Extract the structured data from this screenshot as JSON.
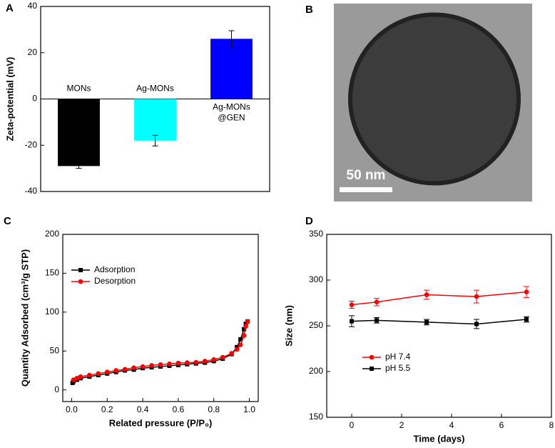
{
  "chart_data": [
    {
      "type": "bar",
      "panel": "A",
      "ylabel": "Zeta-potential (mV)",
      "categories": [
        "MONs",
        "Ag-MONs",
        "Ag-MONs\n@GEN"
      ],
      "values": [
        -29,
        -18,
        26
      ],
      "errors": [
        1,
        2.3,
        3.5
      ],
      "colors": [
        "#000000",
        "#00ffff",
        "#0000ff"
      ],
      "ylim": [
        -40,
        40
      ],
      "yticks": [
        -40,
        -20,
        0,
        20,
        40
      ]
    },
    {
      "type": "image",
      "panel": "B",
      "scale_bar": "50 nm"
    },
    {
      "type": "line",
      "panel": "C",
      "xlabel": "Related pressure (P/P₀)",
      "ylabel": "Quantity Adsorbed (cm³/g STP)",
      "xlim": [
        -0.05,
        1.05
      ],
      "ylim": [
        -15,
        200
      ],
      "xticks": [
        {
          "value": 0,
          "label": "0.0"
        },
        {
          "value": 0.2,
          "label": "0.2"
        },
        {
          "value": 0.4,
          "label": "0.4"
        },
        {
          "value": 0.6,
          "label": "0.6"
        },
        {
          "value": 0.8,
          "label": "0.8"
        },
        {
          "value": 1,
          "label": "1.0"
        }
      ],
      "yticks": [
        0,
        50,
        100,
        150,
        200
      ],
      "legend": "upper-left",
      "series": [
        {
          "name": "Adsorption",
          "color": "#000000",
          "marker": "square",
          "x": [
            0.005,
            0.01,
            0.03,
            0.05,
            0.1,
            0.15,
            0.2,
            0.25,
            0.3,
            0.35,
            0.4,
            0.45,
            0.5,
            0.55,
            0.6,
            0.65,
            0.7,
            0.75,
            0.8,
            0.85,
            0.9,
            0.93,
            0.95,
            0.97,
            0.98,
            0.99
          ],
          "values": [
            9,
            11,
            13,
            15,
            17,
            19,
            21,
            23,
            25,
            26,
            28,
            29,
            30,
            31,
            32,
            33,
            34,
            35,
            37,
            40,
            46,
            55,
            65,
            78,
            85,
            88
          ]
        },
        {
          "name": "Desorption",
          "color": "#ff0000",
          "marker": "circle",
          "x": [
            0.99,
            0.98,
            0.97,
            0.95,
            0.93,
            0.9,
            0.85,
            0.8,
            0.75,
            0.7,
            0.65,
            0.6,
            0.55,
            0.5,
            0.45,
            0.4,
            0.35,
            0.3,
            0.25,
            0.2,
            0.15,
            0.1,
            0.05,
            0.03,
            0.01
          ],
          "values": [
            88,
            82,
            70,
            58,
            52,
            47,
            42,
            39,
            37,
            35.5,
            35,
            34.5,
            33.5,
            32.5,
            31.5,
            30,
            28.5,
            26.5,
            25,
            23,
            21,
            19,
            17,
            15,
            13
          ]
        }
      ]
    },
    {
      "type": "line",
      "panel": "D",
      "xlabel": "Time (days)",
      "ylabel": "Size (nm)",
      "xlim": [
        -1,
        8
      ],
      "ylim": [
        150,
        350
      ],
      "xticks": [
        0,
        2,
        4,
        6,
        8
      ],
      "yticks": [
        150,
        200,
        250,
        300,
        350
      ],
      "legend": "lower-left",
      "series": [
        {
          "name": "pH 7.4",
          "color": "#ff0000",
          "marker": "circle",
          "x": [
            0,
            1,
            3,
            5,
            7
          ],
          "values": [
            273,
            276,
            284,
            282,
            287
          ],
          "errors": [
            4,
            4,
            5,
            7,
            6
          ]
        },
        {
          "name": "pH 5.5",
          "color": "#000000",
          "marker": "square",
          "x": [
            0,
            1,
            3,
            5,
            7
          ],
          "values": [
            255,
            256,
            254,
            252,
            257
          ],
          "errors": [
            6,
            3,
            3,
            5,
            3
          ]
        }
      ]
    }
  ]
}
